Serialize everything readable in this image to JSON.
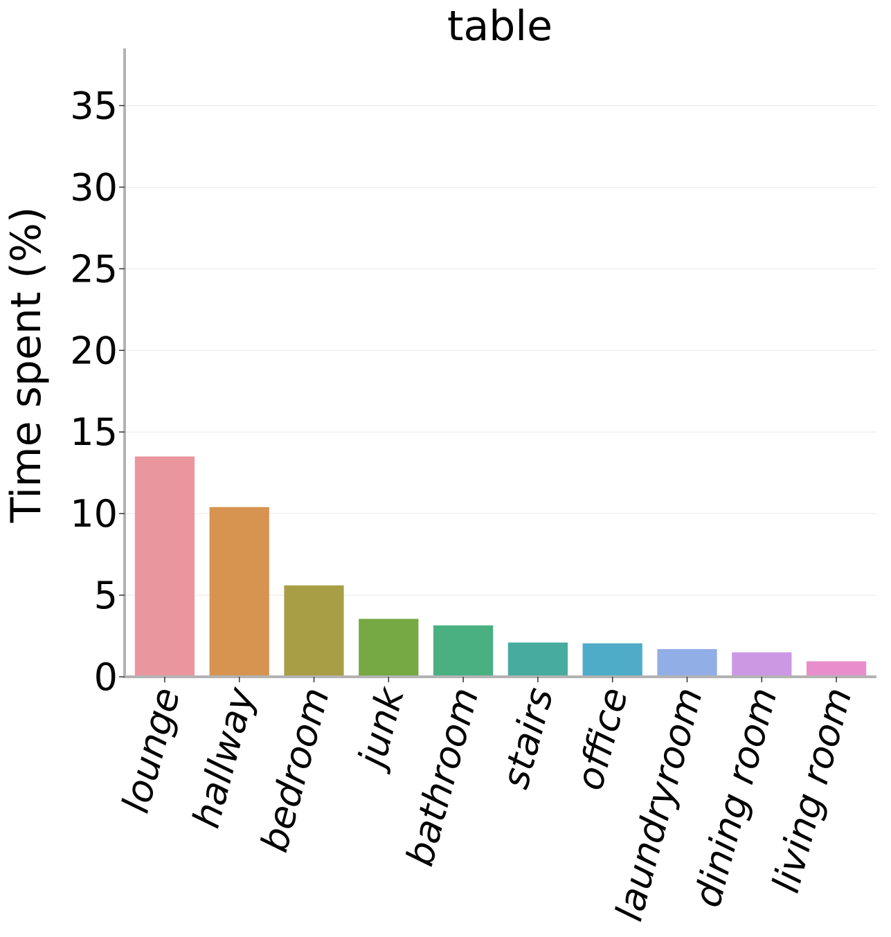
{
  "chart_data": {
    "type": "bar",
    "title": "table",
    "xlabel": "",
    "ylabel": "Time spent (%)",
    "ylim": [
      0,
      38.5
    ],
    "yticks": [
      0,
      5,
      10,
      15,
      20,
      25,
      30,
      35
    ],
    "grid": true,
    "categories": [
      "lounge",
      "hallway",
      "bedroom",
      "junk",
      "bathroom",
      "stairs",
      "office",
      "laundryroom",
      "dining room",
      "living room"
    ],
    "values": [
      13.5,
      10.4,
      5.6,
      3.55,
      3.15,
      2.1,
      2.05,
      1.7,
      1.5,
      0.95
    ],
    "colors": [
      "#e9969f",
      "#d69450",
      "#a89e45",
      "#76a843",
      "#4ab082",
      "#48ab9f",
      "#4eacc8",
      "#92aee6",
      "#cc98e4",
      "#e88ecd"
    ]
  }
}
